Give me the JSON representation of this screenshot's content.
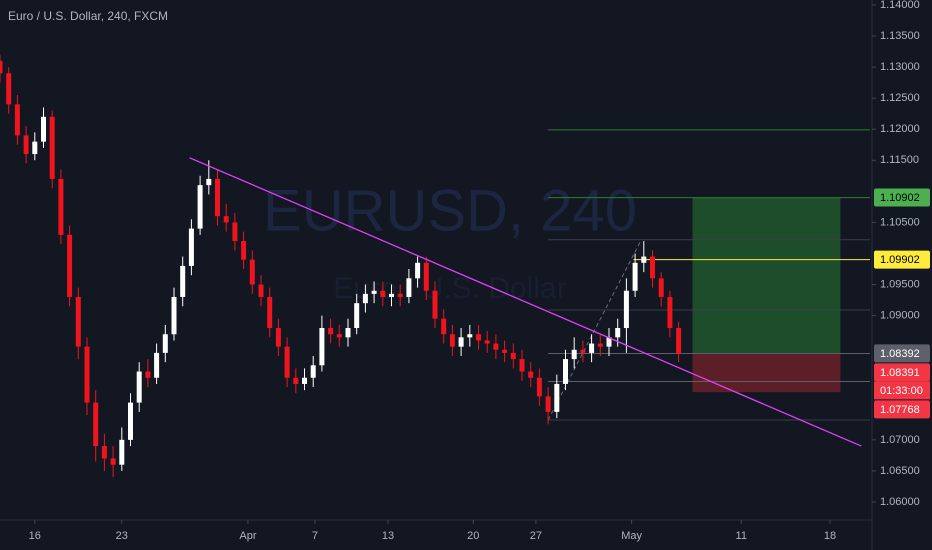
{
  "chart_data": {
    "type": "candlestick",
    "title": "Euro / U.S. Dollar, 240, FXCM",
    "watermark": "EURUSD, 240",
    "watermark_sub": "Euro / U.S. Dollar",
    "up_color": "#ffffff",
    "down_color": "#f0141e",
    "xlim": [
      -2.0,
      48.0
    ],
    "ylim": [
      1.0571,
      1.1408
    ],
    "xticks": [
      {
        "value": 0,
        "label": "16"
      },
      {
        "value": 5,
        "label": "23"
      },
      {
        "value": 12.25,
        "label": "Apr"
      },
      {
        "value": 16.1,
        "label": "7"
      },
      {
        "value": 20.3,
        "label": "13"
      },
      {
        "value": 25.2,
        "label": "20"
      },
      {
        "value": 28.8,
        "label": "27"
      },
      {
        "value": 34.3,
        "label": "May"
      },
      {
        "value": 40.6,
        "label": "11"
      },
      {
        "value": 45.7,
        "label": "18"
      }
    ],
    "yticks": [
      {
        "value": 1.14,
        "label": "1.14000"
      },
      {
        "value": 1.135,
        "label": "1.13500"
      },
      {
        "value": 1.13,
        "label": "1.13000"
      },
      {
        "value": 1.125,
        "label": "1.12500"
      },
      {
        "value": 1.12,
        "label": "1.12000"
      },
      {
        "value": 1.115,
        "label": "1.11500"
      },
      {
        "value": 1.105,
        "label": "1.10500"
      },
      {
        "value": 1.095,
        "label": "1.09500"
      },
      {
        "value": 1.09,
        "label": "1.09000"
      },
      {
        "value": 1.07,
        "label": "1.07000"
      },
      {
        "value": 1.065,
        "label": "1.06500"
      },
      {
        "value": 1.06,
        "label": "1.06000"
      }
    ],
    "candles": [
      [
        -2.0,
        1.131,
        1.132,
        1.1275,
        1.129
      ],
      [
        -1.5,
        1.129,
        1.13,
        1.1225,
        1.124
      ],
      [
        -1.0,
        1.124,
        1.1255,
        1.1175,
        1.119
      ],
      [
        -0.5,
        1.119,
        1.1205,
        1.1145,
        1.116
      ],
      [
        0.0,
        1.116,
        1.1195,
        1.115,
        1.118
      ],
      [
        0.5,
        1.118,
        1.1235,
        1.117,
        1.122
      ],
      [
        1.0,
        1.122,
        1.123,
        1.1105,
        1.112
      ],
      [
        1.5,
        1.112,
        1.1135,
        1.1015,
        1.103
      ],
      [
        2.0,
        1.103,
        1.1045,
        1.0915,
        1.093
      ],
      [
        2.5,
        1.093,
        1.0945,
        1.083,
        1.085
      ],
      [
        3.0,
        1.085,
        1.0865,
        1.074,
        1.076
      ],
      [
        3.5,
        1.076,
        1.078,
        1.0665,
        1.069
      ],
      [
        4.0,
        1.069,
        1.071,
        1.065,
        1.067
      ],
      [
        4.5,
        1.067,
        1.069,
        1.064,
        1.066
      ],
      [
        5.0,
        1.066,
        1.072,
        1.065,
        1.07
      ],
      [
        5.5,
        1.07,
        1.0775,
        1.069,
        1.076
      ],
      [
        6.0,
        1.076,
        1.0825,
        1.0745,
        1.081
      ],
      [
        6.5,
        1.081,
        1.083,
        1.0785,
        1.08
      ],
      [
        7.0,
        1.08,
        1.0855,
        1.079,
        1.084
      ],
      [
        7.5,
        1.084,
        1.0885,
        1.0825,
        1.087
      ],
      [
        8.0,
        1.087,
        1.0945,
        1.086,
        1.093
      ],
      [
        8.5,
        1.093,
        1.0995,
        1.0915,
        1.098
      ],
      [
        9.0,
        1.098,
        1.1055,
        1.0965,
        1.104
      ],
      [
        9.5,
        1.104,
        1.1125,
        1.103,
        1.111
      ],
      [
        10.0,
        1.111,
        1.115,
        1.1095,
        1.112
      ],
      [
        10.5,
        1.112,
        1.1135,
        1.1045,
        1.106
      ],
      [
        11.0,
        1.106,
        1.108,
        1.1035,
        1.105
      ],
      [
        11.5,
        1.105,
        1.1065,
        1.1005,
        1.102
      ],
      [
        12.0,
        1.102,
        1.1035,
        1.0975,
        1.099
      ],
      [
        12.5,
        1.099,
        1.1005,
        1.0935,
        1.095
      ],
      [
        13.0,
        1.095,
        1.0965,
        1.0915,
        1.093
      ],
      [
        13.5,
        1.093,
        1.0945,
        1.0865,
        1.088
      ],
      [
        14.0,
        1.088,
        1.0895,
        1.0835,
        1.085
      ],
      [
        14.5,
        1.085,
        1.0865,
        1.0785,
        1.08
      ],
      [
        15.0,
        1.08,
        1.0815,
        1.0775,
        1.079
      ],
      [
        15.5,
        1.079,
        1.0815,
        1.078,
        1.08
      ],
      [
        16.0,
        1.08,
        1.0835,
        1.0785,
        1.082
      ],
      [
        16.5,
        1.082,
        1.09,
        1.081,
        1.088
      ],
      [
        17.0,
        1.088,
        1.0895,
        1.0855,
        1.087
      ],
      [
        17.5,
        1.087,
        1.0885,
        1.085,
        1.0865
      ],
      [
        18.0,
        1.0865,
        1.0895,
        1.085,
        1.088
      ],
      [
        18.5,
        1.088,
        1.0935,
        1.087,
        1.092
      ],
      [
        19.0,
        1.092,
        1.095,
        1.0905,
        1.0935
      ],
      [
        19.5,
        1.0935,
        1.0955,
        1.092,
        1.094
      ],
      [
        20.0,
        1.094,
        1.0955,
        1.0915,
        1.093
      ],
      [
        20.5,
        1.093,
        1.095,
        1.0915,
        1.0935
      ],
      [
        21.0,
        1.0935,
        1.095,
        1.0915,
        1.093
      ],
      [
        21.5,
        1.093,
        1.0975,
        1.092,
        1.096
      ],
      [
        22.0,
        1.096,
        1.0995,
        1.0945,
        1.0985
      ],
      [
        22.5,
        1.0985,
        1.0995,
        1.0925,
        1.094
      ],
      [
        23.0,
        1.094,
        1.0955,
        1.088,
        1.0895
      ],
      [
        23.5,
        1.0895,
        1.091,
        1.0855,
        1.087
      ],
      [
        24.0,
        1.087,
        1.0885,
        1.0835,
        1.085
      ],
      [
        24.5,
        1.085,
        1.088,
        1.0835,
        1.0865
      ],
      [
        25.0,
        1.0865,
        1.0885,
        1.085,
        1.087
      ],
      [
        25.5,
        1.087,
        1.0885,
        1.0845,
        1.086
      ],
      [
        26.0,
        1.086,
        1.0875,
        1.084,
        1.0855
      ],
      [
        26.5,
        1.0855,
        1.087,
        1.083,
        1.0845
      ],
      [
        27.0,
        1.0845,
        1.086,
        1.0825,
        1.084
      ],
      [
        27.5,
        1.084,
        1.0855,
        1.0815,
        1.083
      ],
      [
        28.0,
        1.083,
        1.0845,
        1.0795,
        1.081
      ],
      [
        28.5,
        1.081,
        1.0825,
        1.0785,
        1.08
      ],
      [
        29.0,
        1.08,
        1.0815,
        1.0755,
        1.077
      ],
      [
        29.5,
        1.077,
        1.0785,
        1.0725,
        1.0745
      ],
      [
        30.0,
        1.0745,
        1.0805,
        1.0735,
        1.079
      ],
      [
        30.5,
        1.079,
        1.0845,
        1.078,
        1.083
      ],
      [
        31.0,
        1.083,
        1.0865,
        1.0815,
        1.0845
      ],
      [
        31.5,
        1.0845,
        1.086,
        1.0825,
        1.084
      ],
      [
        32.0,
        1.084,
        1.087,
        1.0825,
        1.0855
      ],
      [
        32.5,
        1.0855,
        1.087,
        1.0835,
        1.085
      ],
      [
        33.0,
        1.085,
        1.088,
        1.0835,
        1.0865
      ],
      [
        33.5,
        1.0865,
        1.0895,
        1.085,
        1.088
      ],
      [
        34.0,
        1.088,
        1.096,
        1.084,
        1.094
      ],
      [
        34.5,
        1.094,
        1.1,
        1.093,
        1.0985
      ],
      [
        35.0,
        1.0985,
        1.102,
        1.097,
        1.0995
      ],
      [
        35.5,
        1.0995,
        1.1005,
        1.0945,
        1.096
      ],
      [
        36.0,
        1.096,
        1.097,
        1.0915,
        1.093
      ],
      [
        36.5,
        1.093,
        1.094,
        1.0865,
        1.088
      ],
      [
        37.0,
        1.088,
        1.089,
        1.0825,
        1.0839
      ]
    ],
    "trendline": {
      "color": "#e040fb",
      "points": [
        [
          8.9,
          1.1154
        ],
        [
          47.5,
          1.069
        ]
      ]
    },
    "dashed_line": {
      "color": "#6a6d78",
      "points": [
        [
          29.5,
          1.0732
        ],
        [
          34.8,
          1.1019
        ]
      ]
    },
    "levels": [
      {
        "price": 1.1199,
        "start": 29.5,
        "color": "#2e7d32"
      },
      {
        "price": 1.109,
        "start": 29.5,
        "color": "#2e7d32"
      },
      {
        "price": 1.1022,
        "start": 29.5,
        "color": "#3a3e4a"
      },
      {
        "price": 1.0909,
        "start": 29.5,
        "color": "#3a3e4a"
      },
      {
        "price": 1.0839,
        "start": 29.5,
        "color": "#5d606b"
      },
      {
        "price": 1.0794,
        "start": 29.5,
        "color": "#5d606b"
      },
      {
        "price": 1.0732,
        "start": 29.5,
        "color": "#3a3e4a"
      },
      {
        "price": 1.09902,
        "start": 34.4,
        "color": "#ffeb3b"
      }
    ],
    "position": {
      "start": 37.8,
      "end": 46.3,
      "entry": 1.08392,
      "target": 1.10902,
      "stop": 1.07768,
      "profit_color": "#1e4d2b",
      "loss_color": "#5c1f27"
    },
    "price_badges": [
      {
        "value": 1.10902,
        "color": "#4caf50",
        "text_color": "#000000"
      },
      {
        "value": 1.09902,
        "color": "#ffeb3b",
        "text_color": "#000000"
      },
      {
        "value": 1.08392,
        "color": "#5d606b",
        "text_color": "#ffffff"
      },
      {
        "value": 1.08391,
        "color": "#f23645",
        "text_color": "#ffffff",
        "countdown": "01:33:00"
      },
      {
        "value": 1.07768,
        "color": "#f23645",
        "text_color": "#ffffff"
      }
    ]
  }
}
